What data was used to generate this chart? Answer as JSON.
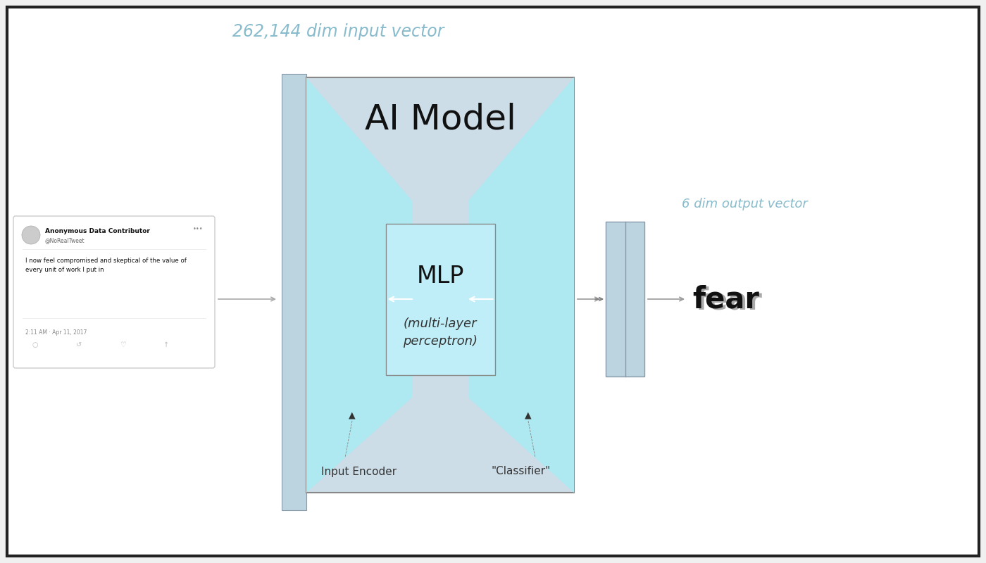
{
  "title": "AI Model",
  "input_label": "262,144 dim input vector",
  "output_label": "6 dim output vector",
  "mlp_label": "MLP",
  "mlp_sublabel": "(multi-layer\nperceptron)",
  "encoder_label": "Input Encoder",
  "classifier_label": "\"Classifier\"",
  "fear_label": "fear",
  "bg_color": "#f0f0f0",
  "outer_bg": "#ffffff",
  "outer_box_color": "#ccdde8",
  "outer_box_edge": "#888888",
  "inner_encoder_color": "#aee8f0",
  "inner_classifier_color": "#aee8f0",
  "mlp_box_color": "#c0eef8",
  "mlp_box_edge": "#888888",
  "input_bar_color": "#bcd4e0",
  "output_bar_color": "#bcd4e0",
  "arrow_color": "#cccccc",
  "arrow_head_color": "#aaaaaa",
  "input_label_color": "#88bbcc",
  "output_label_color": "#88bbcc",
  "fear_color_bold": "#111111",
  "fear_color_light": "#888888",
  "tweet_box_color": "#ffffff",
  "tweet_box_edge": "#cccccc",
  "border_color": "#222222"
}
